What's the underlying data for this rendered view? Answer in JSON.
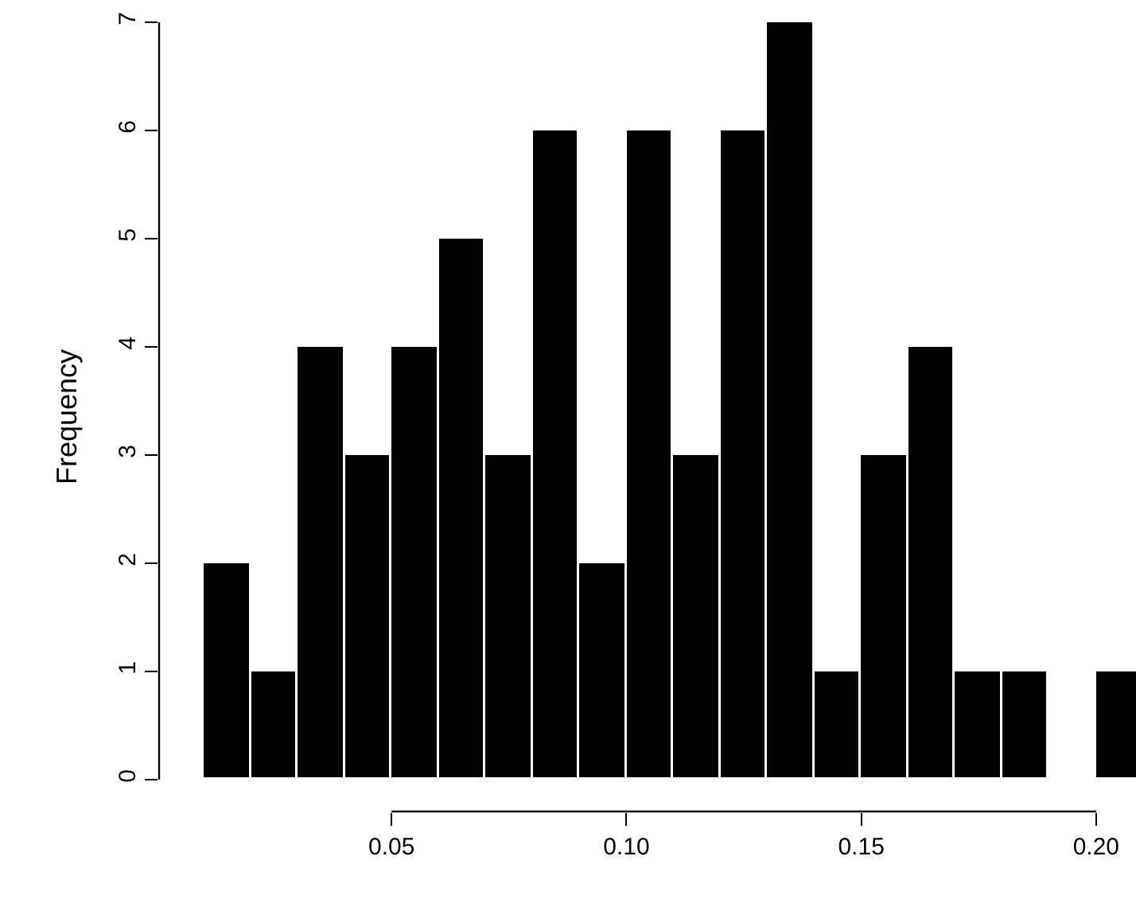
{
  "chart_data": {
    "type": "histogram",
    "ylabel": "Frequency",
    "bins": [
      0.01,
      0.02,
      0.03,
      0.04,
      0.05,
      0.06,
      0.07,
      0.08,
      0.09,
      0.1,
      0.11,
      0.12,
      0.13,
      0.14,
      0.15,
      0.16,
      0.17,
      0.18,
      0.19,
      0.2,
      0.21
    ],
    "values": [
      2,
      1,
      4,
      3,
      4,
      5,
      3,
      6,
      2,
      6,
      3,
      6,
      7,
      1,
      3,
      4,
      1,
      1,
      0,
      1
    ],
    "color": "#000000",
    "xlim": [
      0.0005,
      0.2085
    ],
    "xticks": [
      {
        "value": 0.05,
        "label": "0.05"
      },
      {
        "value": 0.1,
        "label": "0.10"
      },
      {
        "value": 0.15,
        "label": "0.15"
      },
      {
        "value": 0.2,
        "label": "0.20"
      }
    ],
    "ylim": [
      -0.294,
      7
    ],
    "yticks": [
      0,
      1,
      2,
      3,
      4,
      5,
      6,
      7
    ]
  }
}
